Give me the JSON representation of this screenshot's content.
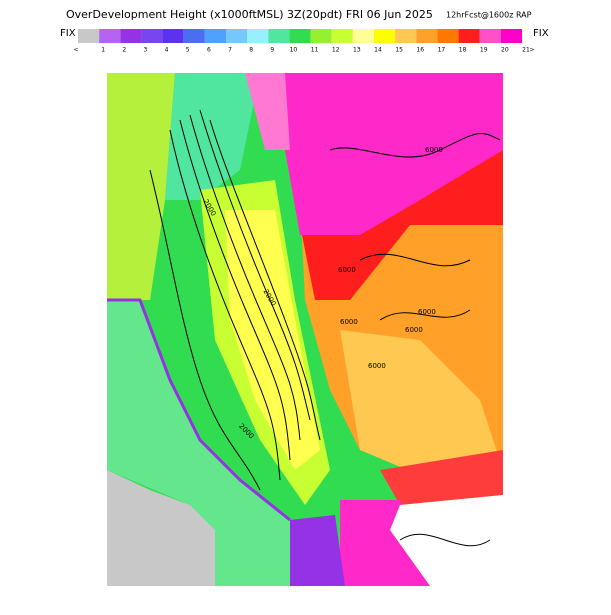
{
  "header": {
    "title": "OverDevelopment Height (x1000ftMSL) 3Z(20pdt) FRI 06 Jun 2025",
    "subtitle": "12hrFcst@1600z RAP"
  },
  "colorbar": {
    "left_label": "FIX",
    "right_label": "FIX",
    "colors": [
      "#c8c8c8",
      "#b464f0",
      "#9632e6",
      "#7846f0",
      "#5a32f0",
      "#4b6ef0",
      "#50a0ff",
      "#78c8ff",
      "#96f0ff",
      "#50e6a0",
      "#32dc50",
      "#96f032",
      "#c8ff32",
      "#ffff96",
      "#ffff00",
      "#ffc850",
      "#ffa028",
      "#ff7800",
      "#ff1e1e",
      "#ff50c8",
      "#ff00c8"
    ],
    "ticks": [
      "<",
      "1",
      "2",
      "3",
      "4",
      "5",
      "6",
      "7",
      "8",
      "9",
      "10",
      "11",
      "12",
      "13",
      "14",
      "15",
      "16",
      "17",
      "18",
      "19",
      "20",
      "21",
      ">"
    ]
  },
  "map": {
    "contour_labels": [
      "6000",
      "6000",
      "6000",
      "6000",
      "6000",
      "6000",
      "2000",
      "2000",
      "2000"
    ]
  }
}
